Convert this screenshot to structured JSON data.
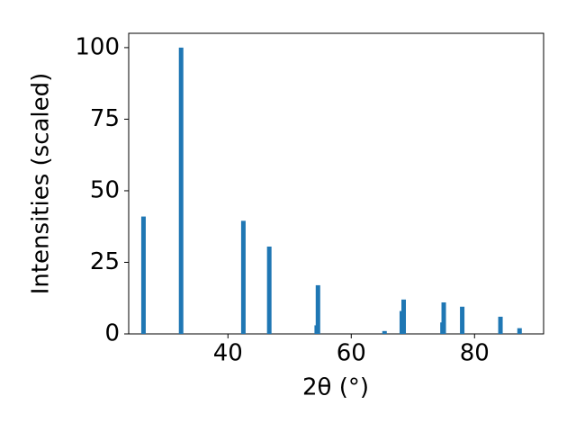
{
  "chart_data": {
    "type": "bar",
    "x_label": "2θ (°)",
    "y_label": "Intensities (scaled)",
    "x": [
      26.3,
      32.4,
      42.5,
      46.7,
      54.4,
      54.6,
      65.4,
      68.2,
      68.5,
      74.8,
      75.0,
      78.0,
      84.2,
      87.3
    ],
    "values": [
      41,
      100,
      39.5,
      30.5,
      3,
      17,
      1,
      8,
      12,
      4,
      11,
      9.5,
      6,
      2
    ],
    "color": "#1f77b4",
    "xlim": [
      23.9,
      91.2
    ],
    "xticks": [
      40,
      60,
      80
    ],
    "ylim": [
      0,
      105
    ],
    "yticks": [
      0,
      25,
      50,
      75,
      100
    ],
    "grid": false
  }
}
